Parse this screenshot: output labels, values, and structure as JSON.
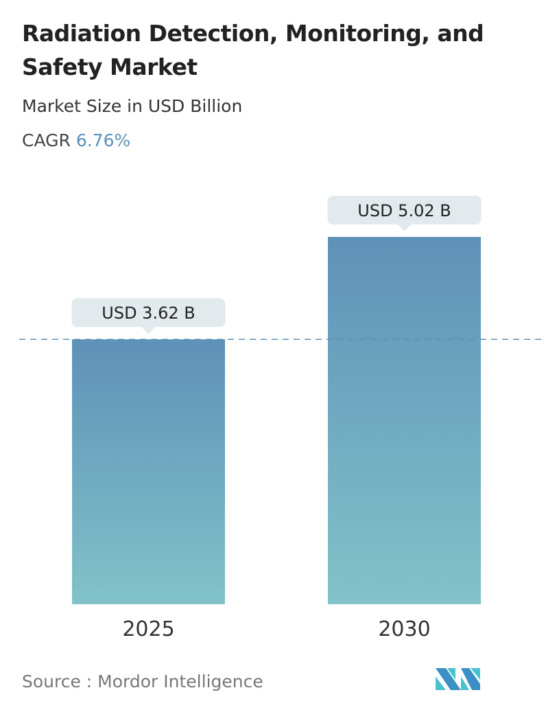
{
  "header": {
    "title": "Radiation Detection, Monitoring, and Safety Market",
    "subtitle": "Market Size in USD Billion",
    "cagr_label": "CAGR",
    "cagr_value": "6.76%"
  },
  "chart_data": {
    "type": "bar",
    "categories": [
      "2025",
      "2030"
    ],
    "values": [
      3.62,
      5.02
    ],
    "labels": [
      "USD 3.62 B",
      "USD 5.02 B"
    ],
    "ylim": [
      0,
      5.02
    ],
    "reference_line": 3.62,
    "colors": {
      "bar_top": "#5e91b8",
      "bar_bottom": "#82c2c8",
      "label_bg": "#e2eaee",
      "dash": "#5b8fb9"
    }
  },
  "footer": {
    "source": "Source :  Mordor Intelligence"
  }
}
